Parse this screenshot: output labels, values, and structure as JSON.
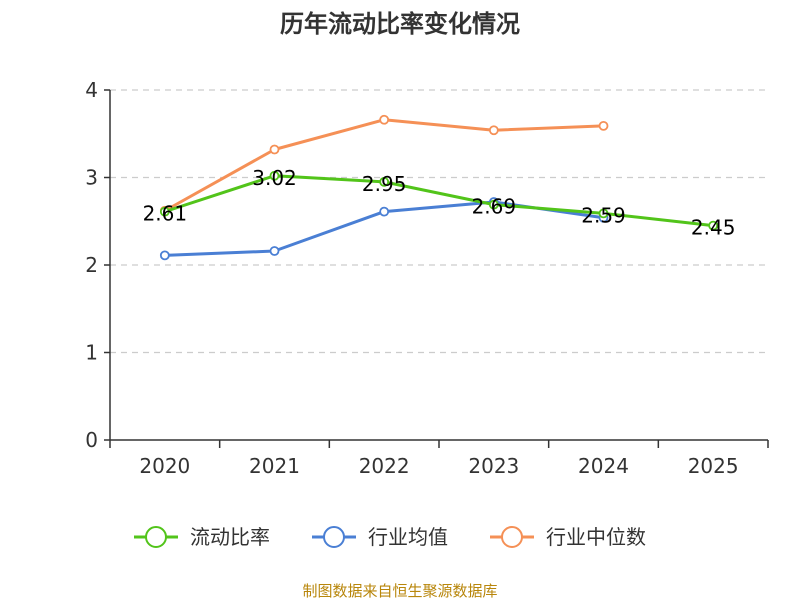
{
  "chart_data": {
    "type": "line",
    "title": "历年流动比率变化情况",
    "categories": [
      "2020",
      "2021",
      "2022",
      "2023",
      "2024",
      "2025"
    ],
    "ylim": [
      0,
      4
    ],
    "yticks": [
      0,
      1,
      2,
      3,
      4
    ],
    "grid": true,
    "legend_position": "bottom",
    "series": [
      {
        "name": "流动比率",
        "color": "#52c41a",
        "values": [
          2.61,
          3.02,
          2.95,
          2.69,
          2.59,
          2.45
        ],
        "labels": [
          "2.61",
          "3.02",
          "2.95",
          "2.69",
          "2.59",
          "2.45"
        ]
      },
      {
        "name": "行业均值",
        "color": "#4a7fd4",
        "values": [
          2.11,
          2.16,
          2.61,
          2.72,
          2.54,
          null
        ]
      },
      {
        "name": "行业中位数",
        "color": "#f59056",
        "values": [
          2.62,
          3.32,
          3.66,
          3.54,
          3.59,
          null
        ]
      }
    ],
    "source": "制图数据来自恒生聚源数据库"
  }
}
